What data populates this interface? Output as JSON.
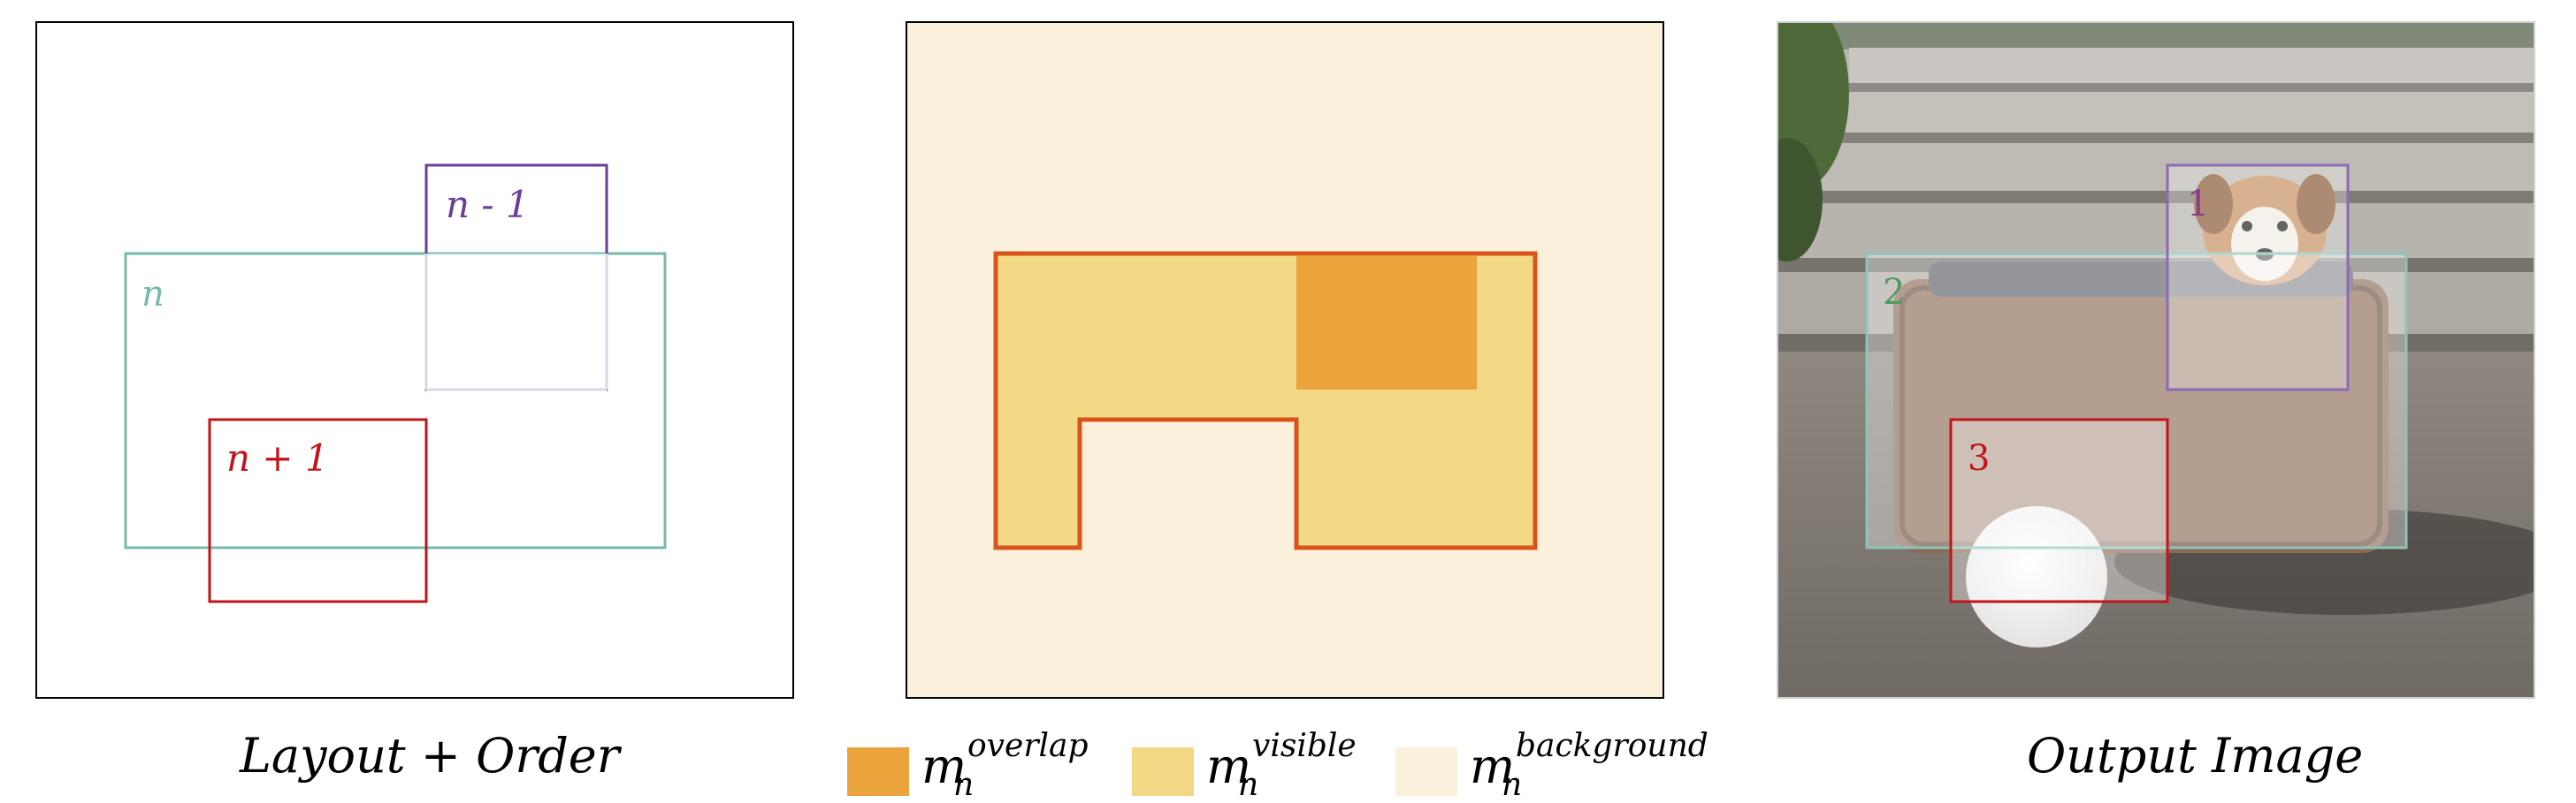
{
  "captions": {
    "layout": "Layout + Order",
    "output": "Output Image"
  },
  "layout_labels": {
    "prev": "n - 1",
    "current": "n",
    "next": "n + 1"
  },
  "output_labels": [
    "1",
    "2",
    "3"
  ],
  "legend": [
    {
      "base": "m",
      "sub": "n",
      "sup": "overlap",
      "color": "#eba33c"
    },
    {
      "base": "m",
      "sub": "n",
      "sup": "visible",
      "color": "#f3d886"
    },
    {
      "base": "m",
      "sub": "n",
      "sup": "background",
      "color": "#fbf0dc"
    }
  ],
  "colors": {
    "prev_box": "#6a3d9a",
    "current_box": "#79b9ad",
    "next_box": "#c0141b",
    "mask_outline": "#d9541a",
    "overlap": "#eba33c",
    "visible": "#f3d886",
    "background": "#fbf0dc"
  }
}
